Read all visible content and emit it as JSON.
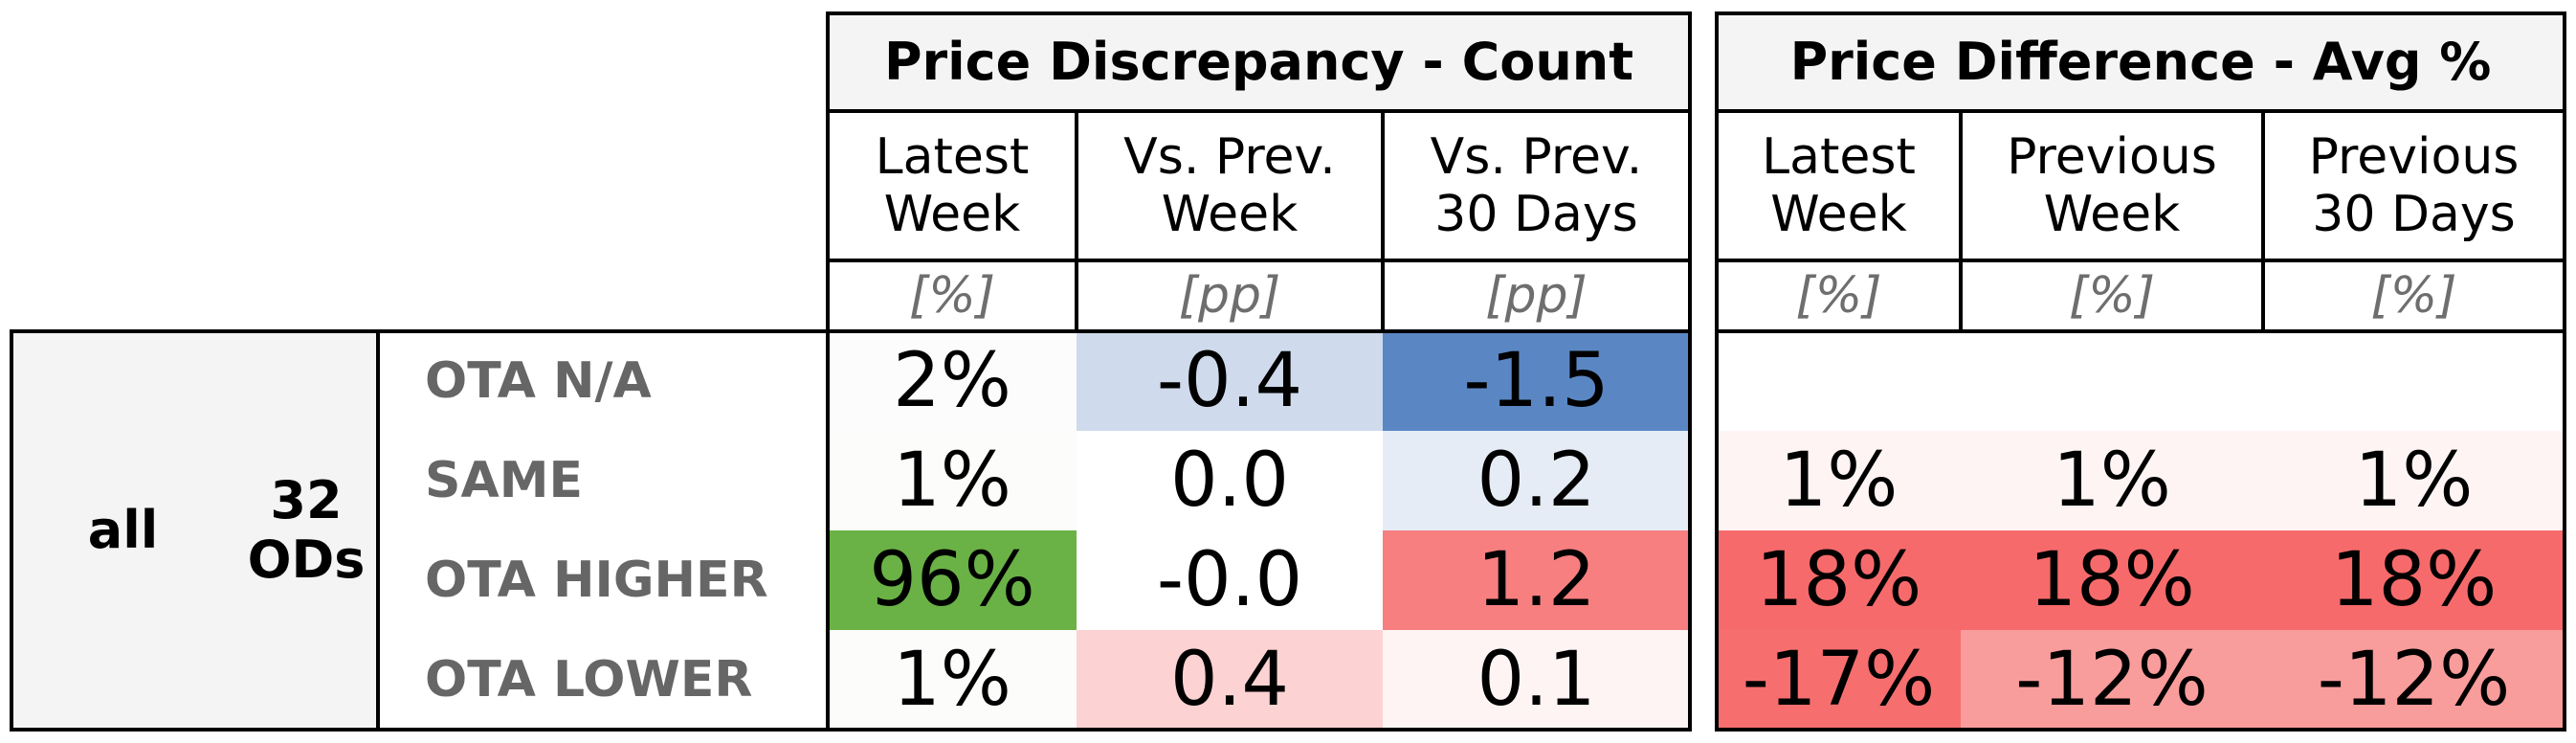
{
  "chart_data": {
    "type": "table",
    "groups": [
      {
        "title": "Price Discrepancy - Count",
        "columns": [
          {
            "label": "Latest\nWeek",
            "unit": "[%]"
          },
          {
            "label": "Vs. Prev.\nWeek",
            "unit": "[pp]"
          },
          {
            "label": "Vs. Prev.\n30 Days",
            "unit": "[pp]"
          }
        ]
      },
      {
        "title": "Price Difference - Avg %",
        "columns": [
          {
            "label": "Latest\nWeek",
            "unit": "[%]"
          },
          {
            "label": "Previous\nWeek",
            "unit": "[%]"
          },
          {
            "label": "Previous\n30 Days",
            "unit": "[%]"
          }
        ]
      }
    ],
    "row_stub": {
      "segment": "all",
      "od_count": "32\nODs"
    },
    "rows": [
      {
        "label": "OTA N/A",
        "count": [
          {
            "text": "2%",
            "color": "#fbfcfb"
          },
          {
            "text": "-0.4",
            "color": "#cfdbec"
          },
          {
            "text": "-1.5",
            "color": "#5a87c4"
          }
        ],
        "diff": [
          {
            "text": "",
            "color": "#ffffff"
          },
          {
            "text": "",
            "color": "#ffffff"
          },
          {
            "text": "",
            "color": "#ffffff"
          }
        ]
      },
      {
        "label": "SAME",
        "count": [
          {
            "text": "1%",
            "color": "#fcfcfb"
          },
          {
            "text": "0.0",
            "color": "#ffffff"
          },
          {
            "text": "0.2",
            "color": "#e6ecf5"
          }
        ],
        "diff": [
          {
            "text": "1%",
            "color": "#fff4f4"
          },
          {
            "text": "1%",
            "color": "#fff4f4"
          },
          {
            "text": "1%",
            "color": "#fff4f4"
          }
        ]
      },
      {
        "label": "OTA HIGHER",
        "count": [
          {
            "text": "96%",
            "color": "#6ab246"
          },
          {
            "text": "-0.0",
            "color": "#ffffff"
          },
          {
            "text": "1.2",
            "color": "#f77f80"
          }
        ],
        "diff": [
          {
            "text": "18%",
            "color": "#f76a6b"
          },
          {
            "text": "18%",
            "color": "#f76a6b"
          },
          {
            "text": "18%",
            "color": "#f76a6b"
          }
        ]
      },
      {
        "label": "OTA LOWER",
        "count": [
          {
            "text": "1%",
            "color": "#fcfcfb"
          },
          {
            "text": "0.4",
            "color": "#fcd2d2"
          },
          {
            "text": "0.1",
            "color": "#fff4f4"
          }
        ],
        "diff": [
          {
            "text": "-17%",
            "color": "#f76e6f"
          },
          {
            "text": "-12%",
            "color": "#f99c9c"
          },
          {
            "text": "-12%",
            "color": "#f99c9c"
          }
        ]
      }
    ]
  }
}
